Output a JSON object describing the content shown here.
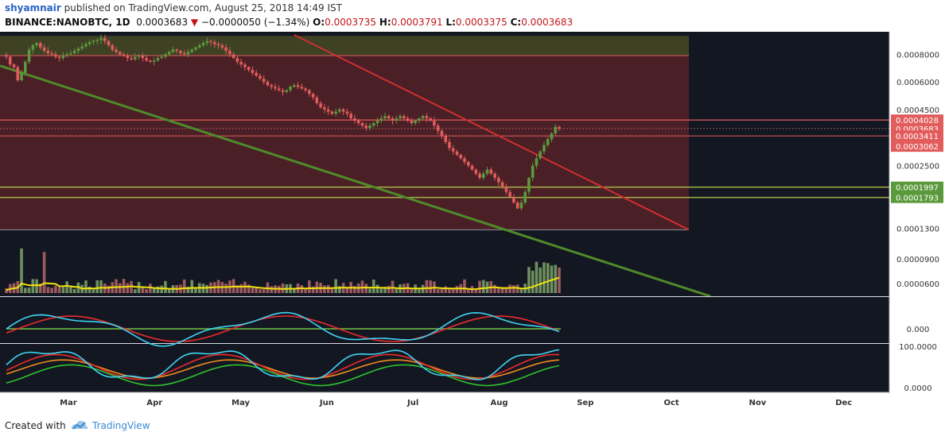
{
  "header": {
    "author": "shyamnair",
    "published_text": "published on TradingView.com, August 25, 2018 14:49 IST",
    "symbol": "BINANCE:NANOBTC, 1D",
    "last_price": "0.0003683",
    "change_arrow": "▼",
    "change": "−0.0000050 (−1.34%)",
    "o_label": "O:",
    "o_value": "0.0003735",
    "h_label": "H:",
    "h_value": "0.0003791",
    "l_label": "L:",
    "l_value": "0.0003375",
    "c_label": "C:",
    "c_value": "0.0003683"
  },
  "footer": {
    "created_with": "Created with",
    "brand": "TradingView"
  },
  "colors": {
    "background": "#131722",
    "up": "#5b9a3c",
    "down": "#e25c5c",
    "zone": "#4a1f26",
    "resistance_line": "#d03030",
    "support_line": "#4f8a2a",
    "volume_ma": "#f0e20d",
    "osc_fast": "#3fd3f2",
    "osc_slow": "#ee2b2b",
    "stoch_mid": "#f08c1c",
    "stoch_low": "#2fc42f"
  },
  "chart_data": {
    "type": "candlestick",
    "title": "BINANCE:NANOBTC, 1D",
    "x_tick_labels": [
      "Mar",
      "Apr",
      "May",
      "Jun",
      "Jul",
      "Aug",
      "Sep",
      "Oct",
      "Nov",
      "Dec"
    ],
    "price_scale": "log",
    "price_tick_labels": [
      "0.0008000",
      "0.0006000",
      "0.0004500",
      "0.0002500",
      "0.0001300",
      "0.0000900",
      "0.0000600"
    ],
    "price_level_labels": [
      {
        "value": "0.0004028",
        "color": "#e25c5c"
      },
      {
        "value": "0.0003683",
        "color": "#e25c5c"
      },
      {
        "value": "0.0003411",
        "color": "#e25c5c"
      },
      {
        "value": "0.0003062",
        "color": "#e25c5c"
      },
      {
        "value": "0.0001997",
        "color": "#5b9a3c"
      },
      {
        "value": "0.0001793",
        "color": "#5b9a3c"
      }
    ],
    "daily_closes_approx": [
      0.00078,
      0.00072,
      0.0007,
      0.00061,
      0.00066,
      0.00074,
      0.00084,
      0.00088,
      0.0009,
      0.00086,
      0.00083,
      0.00081,
      0.0008,
      0.00078,
      0.00077,
      0.00079,
      0.0008,
      0.00081,
      0.00083,
      0.00085,
      0.00087,
      0.00089,
      0.00091,
      0.00092,
      0.00093,
      0.00095,
      0.00092,
      0.00088,
      0.00084,
      0.00082,
      0.0008,
      0.00079,
      0.00077,
      0.00076,
      0.00078,
      0.00079,
      0.00077,
      0.00075,
      0.00074,
      0.00075,
      0.00077,
      0.00078,
      0.0008,
      0.00082,
      0.00084,
      0.00083,
      0.00081,
      0.0008,
      0.00082,
      0.00084,
      0.00086,
      0.00088,
      0.0009,
      0.00092,
      0.00091,
      0.00089,
      0.00088,
      0.00086,
      0.00083,
      0.0008,
      0.00077,
      0.00074,
      0.00072,
      0.0007,
      0.00068,
      0.00066,
      0.00064,
      0.00062,
      0.0006,
      0.00058,
      0.00057,
      0.00056,
      0.00055,
      0.00054,
      0.00055,
      0.00057,
      0.00058,
      0.00057,
      0.00056,
      0.00055,
      0.00053,
      0.00051,
      0.00048,
      0.00046,
      0.00045,
      0.00044,
      0.00043,
      0.00044,
      0.00045,
      0.00044,
      0.00043,
      0.00041,
      0.0004,
      0.00039,
      0.00038,
      0.00037,
      0.00038,
      0.00039,
      0.0004,
      0.00041,
      0.00042,
      0.00041,
      0.0004,
      0.00041,
      0.00042,
      0.00041,
      0.0004,
      0.00039,
      0.0004,
      0.00041,
      0.00042,
      0.00041,
      0.0004,
      0.00038,
      0.00036,
      0.00034,
      0.00032,
      0.0003,
      0.00029,
      0.00028,
      0.00027,
      0.00026,
      0.00025,
      0.00024,
      0.00023,
      0.00022,
      0.00023,
      0.00024,
      0.00023,
      0.00022,
      0.00021,
      0.0002,
      0.00019,
      0.00018,
      0.00017,
      0.00016,
      0.00017,
      0.00019,
      0.00022,
      0.00025,
      0.00027,
      0.00029,
      0.00031,
      0.00033,
      0.00035,
      0.000375,
      0.000368
    ]
  }
}
